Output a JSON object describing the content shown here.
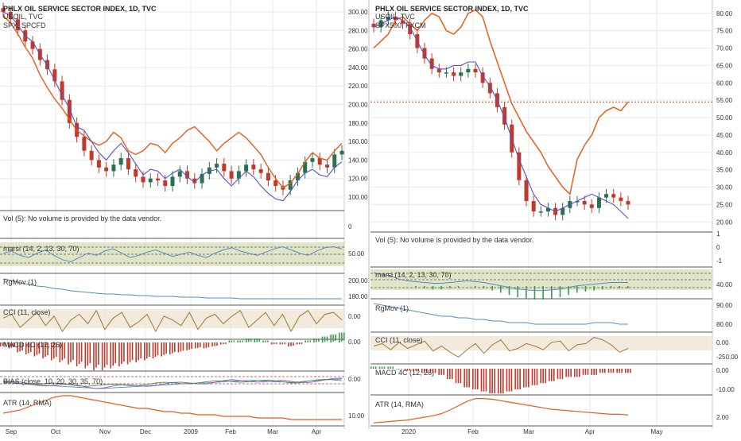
{
  "colors": {
    "candle_up": "#26734d",
    "candle_down": "#c0392b",
    "orange": "#e65c1a",
    "purple": "#5b4fc4",
    "blue": "#5a8bbd",
    "brown": "#a07830",
    "green_band": "#c9cf9a",
    "tan_band": "#efe6d4",
    "grid": "#e9e9e9",
    "divider": "#555555"
  },
  "chart_data": [
    {
      "type": "candlestick",
      "panel": "left",
      "title": "PHLX OIL SERVICE SECTOR INDEX, 1D, TVC",
      "legend": [
        "USOIL, TVC",
        "SPX, SPCFD"
      ],
      "y_ticks": [
        "300.00",
        "280.00",
        "260.00",
        "240.00",
        "220.00",
        "200.00",
        "180.00",
        "160.00",
        "140.00",
        "120.00",
        "100.00"
      ],
      "x_ticks": [
        "Sep",
        "Oct",
        "Nov",
        "Dec",
        "2009",
        "Feb",
        "Mar",
        "Apr"
      ],
      "price": [
        300,
        292,
        280,
        268,
        260,
        248,
        238,
        225,
        205,
        180,
        165,
        150,
        140,
        132,
        128,
        135,
        142,
        130,
        122,
        116,
        120,
        118,
        112,
        122,
        128,
        120,
        115,
        125,
        132,
        136,
        128,
        120,
        128,
        135,
        130,
        126,
        118,
        112,
        108,
        118,
        126,
        138,
        142,
        135,
        132,
        146,
        150
      ],
      "series": [
        {
          "name": "USOIL, TVC",
          "values": [
            296,
            288,
            276,
            262,
            250,
            232,
            218,
            206,
            196,
            184,
            172,
            166,
            160,
            156,
            160,
            170,
            164,
            150,
            146,
            150,
            158,
            156,
            148,
            158,
            164,
            172,
            176,
            168,
            160,
            150,
            158,
            164,
            170,
            164,
            155,
            146,
            132,
            120,
            110,
            115,
            125,
            138,
            148,
            142,
            140,
            150,
            158
          ]
        },
        {
          "name": "SPX, SPCFD",
          "values": [
            300,
            296,
            286,
            274,
            268,
            254,
            242,
            226,
            210,
            196,
            176,
            172,
            160,
            148,
            140,
            150,
            158,
            148,
            136,
            124,
            130,
            128,
            120,
            126,
            130,
            122,
            116,
            124,
            128,
            130,
            120,
            112,
            120,
            128,
            122,
            112,
            104,
            98,
            96,
            106,
            118,
            126,
            130,
            124,
            122,
            132,
            138
          ]
        }
      ]
    },
    {
      "type": "candlestick",
      "panel": "right",
      "title": "PHLX OIL SERVICE SECTOR INDEX, 1D, TVC",
      "legend": [
        "USOIL, TVC",
        "SPX500, FXCM"
      ],
      "y_ticks": [
        "80.00",
        "75.00",
        "70.00",
        "65.00",
        "60.00",
        "55.00",
        "50.00",
        "45.00",
        "40.00",
        "35.00",
        "30.00",
        "25.00",
        "20.00"
      ],
      "x_ticks": [
        "2020",
        "Feb",
        "Mar",
        "Apr",
        "May"
      ],
      "reference_line": 54.5,
      "price": [
        76,
        78,
        79,
        78,
        77,
        74,
        70,
        67,
        64,
        63,
        63,
        62,
        63,
        64,
        63,
        60,
        57,
        53,
        48,
        40,
        32,
        26,
        23,
        23,
        24,
        22,
        24,
        26,
        26,
        25,
        24,
        27,
        28,
        27,
        26,
        25
      ],
      "series": [
        {
          "name": "USOIL, TVC",
          "values": [
            70,
            72,
            74,
            78,
            79,
            77,
            75,
            78,
            80,
            79,
            75,
            74,
            76,
            80,
            81,
            79,
            72,
            66,
            60,
            54,
            50,
            46,
            43,
            40,
            36,
            33,
            30,
            28,
            38,
            42,
            45,
            50,
            52,
            53,
            52,
            54.5
          ]
        },
        {
          "name": "SPX500, FXCM",
          "values": [
            76,
            77,
            78,
            79,
            78,
            76,
            72,
            68,
            65,
            64,
            64,
            65,
            65,
            66,
            66,
            62,
            59,
            55,
            50,
            44,
            38,
            33,
            28,
            25,
            24,
            23,
            24,
            25,
            26,
            27,
            28,
            27,
            26,
            25,
            23,
            21
          ]
        }
      ]
    }
  ],
  "indicators_left": {
    "vol": "Vol (5): No volume is provided by the data vendor.",
    "vol_tick": "0",
    "marsi": "marsi (14, 2, 13, 30, 70)",
    "marsi_tick": "50.00",
    "marsi_values": [
      52,
      54,
      50,
      48,
      52,
      55,
      50,
      46,
      44,
      48,
      52,
      50,
      54,
      56,
      52,
      48,
      50,
      53,
      55,
      52,
      49,
      51,
      53,
      50,
      48,
      52,
      55,
      57,
      54,
      52,
      50,
      53,
      56,
      58,
      55,
      52,
      50,
      54,
      57,
      58,
      56
    ],
    "rgmov": "RgMov (1)",
    "rgmov_ticks": [
      "200.00",
      "180.00"
    ],
    "rgmov_values": [
      205,
      203,
      200,
      198,
      196,
      195,
      193,
      192,
      190,
      189,
      188,
      187,
      186,
      186,
      185,
      185,
      184,
      184,
      183,
      183,
      183,
      182,
      182,
      182,
      181,
      181,
      181,
      181,
      180,
      180,
      180,
      180,
      180,
      180,
      180,
      180,
      180,
      180,
      180,
      180,
      180
    ],
    "cci": "CCI (11, close)",
    "cci_tick": "0.00",
    "cci_values": [
      40,
      80,
      -60,
      20,
      100,
      -40,
      60,
      -100,
      20,
      80,
      -20,
      120,
      -80,
      40,
      100,
      -60,
      0,
      80,
      -100,
      60,
      20,
      -40,
      100,
      -80,
      40,
      80,
      -20,
      60,
      120,
      -60,
      20,
      100,
      -40,
      80,
      -100,
      60,
      120,
      -20,
      80,
      100,
      20
    ],
    "macd": "MACD 4C (12, 26)",
    "macd_tick": "0.00",
    "macd_values": [
      -2,
      -3,
      -5,
      -6,
      -7,
      -8,
      -9,
      -10,
      -11,
      -12,
      -13,
      -14,
      -14,
      -13,
      -12,
      -11,
      -10,
      -9,
      -8,
      -7,
      -6,
      -5,
      -4,
      -3,
      -3,
      -2,
      -1,
      1,
      1,
      2,
      2,
      1,
      -1,
      -1,
      -2,
      -1,
      1,
      2,
      3,
      4,
      5
    ],
    "bias": "BIAS (close, 10, 20, 30, 35, 70)",
    "bias_tick": "0.00",
    "atr": "ATR (14, RMA)",
    "atr_tick": "10.00",
    "atr_values": [
      11,
      12,
      13,
      15,
      17,
      19,
      21,
      22,
      22,
      21,
      20,
      19,
      18,
      17,
      16,
      15,
      14,
      14,
      13,
      12,
      12,
      11,
      11,
      10,
      10,
      10,
      9,
      9,
      9,
      9,
      8,
      8,
      8,
      8,
      7,
      7,
      7,
      7,
      7,
      7,
      7
    ]
  },
  "indicators_right": {
    "vol": "Vol (5): No volume is provided by the data vendor.",
    "vol_ticks": [
      "1",
      "0",
      "-1"
    ],
    "marsi": "marsi (14, 2, 13, 30, 70)",
    "marsi_tick": "40.00",
    "marsi_values": [
      58,
      56,
      54,
      50,
      48,
      47,
      46,
      45,
      45,
      46,
      47,
      48,
      47,
      46,
      44,
      42,
      40,
      38,
      37,
      36,
      36,
      37,
      38,
      40,
      42,
      43,
      44,
      45,
      46,
      46,
      46
    ],
    "rgmov": "RgMov (1)",
    "rgmov_ticks": [
      "90.00",
      "80.00"
    ],
    "rgmov_values": [
      92,
      91,
      90,
      89,
      88,
      87,
      86,
      85,
      84,
      84,
      83,
      83,
      82,
      82,
      81,
      81,
      80,
      80,
      80,
      79,
      79,
      79,
      79,
      79,
      79,
      79,
      80,
      80,
      80,
      79,
      79
    ],
    "cci": "CCI (11, close)",
    "cci_ticks": [
      "0.00",
      "-250.00"
    ],
    "cci_values": [
      20,
      60,
      -40,
      80,
      -20,
      40,
      100,
      -60,
      20,
      -80,
      -160,
      -40,
      60,
      -100,
      40,
      120,
      -60,
      -20,
      60,
      20,
      -40,
      80,
      100,
      -60,
      40,
      60,
      160,
      120,
      40,
      -80,
      -20
    ],
    "macd": "MACD 4C (12, 26)",
    "macd_ticks": [
      "0.00",
      "-10.00"
    ],
    "macd_values": [
      1,
      1,
      1,
      0,
      -1,
      -1,
      -2,
      -2,
      -3,
      -5,
      -7,
      -9,
      -10,
      -11,
      -12,
      -12,
      -11,
      -10,
      -9,
      -8,
      -7,
      -6,
      -5,
      -4,
      -4,
      -3,
      -3,
      -2,
      -2,
      -2,
      -2
    ],
    "atr": "ATR (14, RMA)",
    "atr_tick": "2.00",
    "atr_values": [
      1.2,
      1.3,
      1.4,
      1.5,
      1.6,
      1.8,
      2.0,
      2.2,
      2.5,
      3.0,
      3.6,
      4.2,
      4.6,
      4.6,
      4.5,
      4.3,
      4.1,
      3.9,
      3.7,
      3.5,
      3.3,
      3.1,
      3.0,
      2.9,
      2.8,
      2.7,
      2.6,
      2.5,
      2.4,
      2.4,
      2.3
    ]
  }
}
